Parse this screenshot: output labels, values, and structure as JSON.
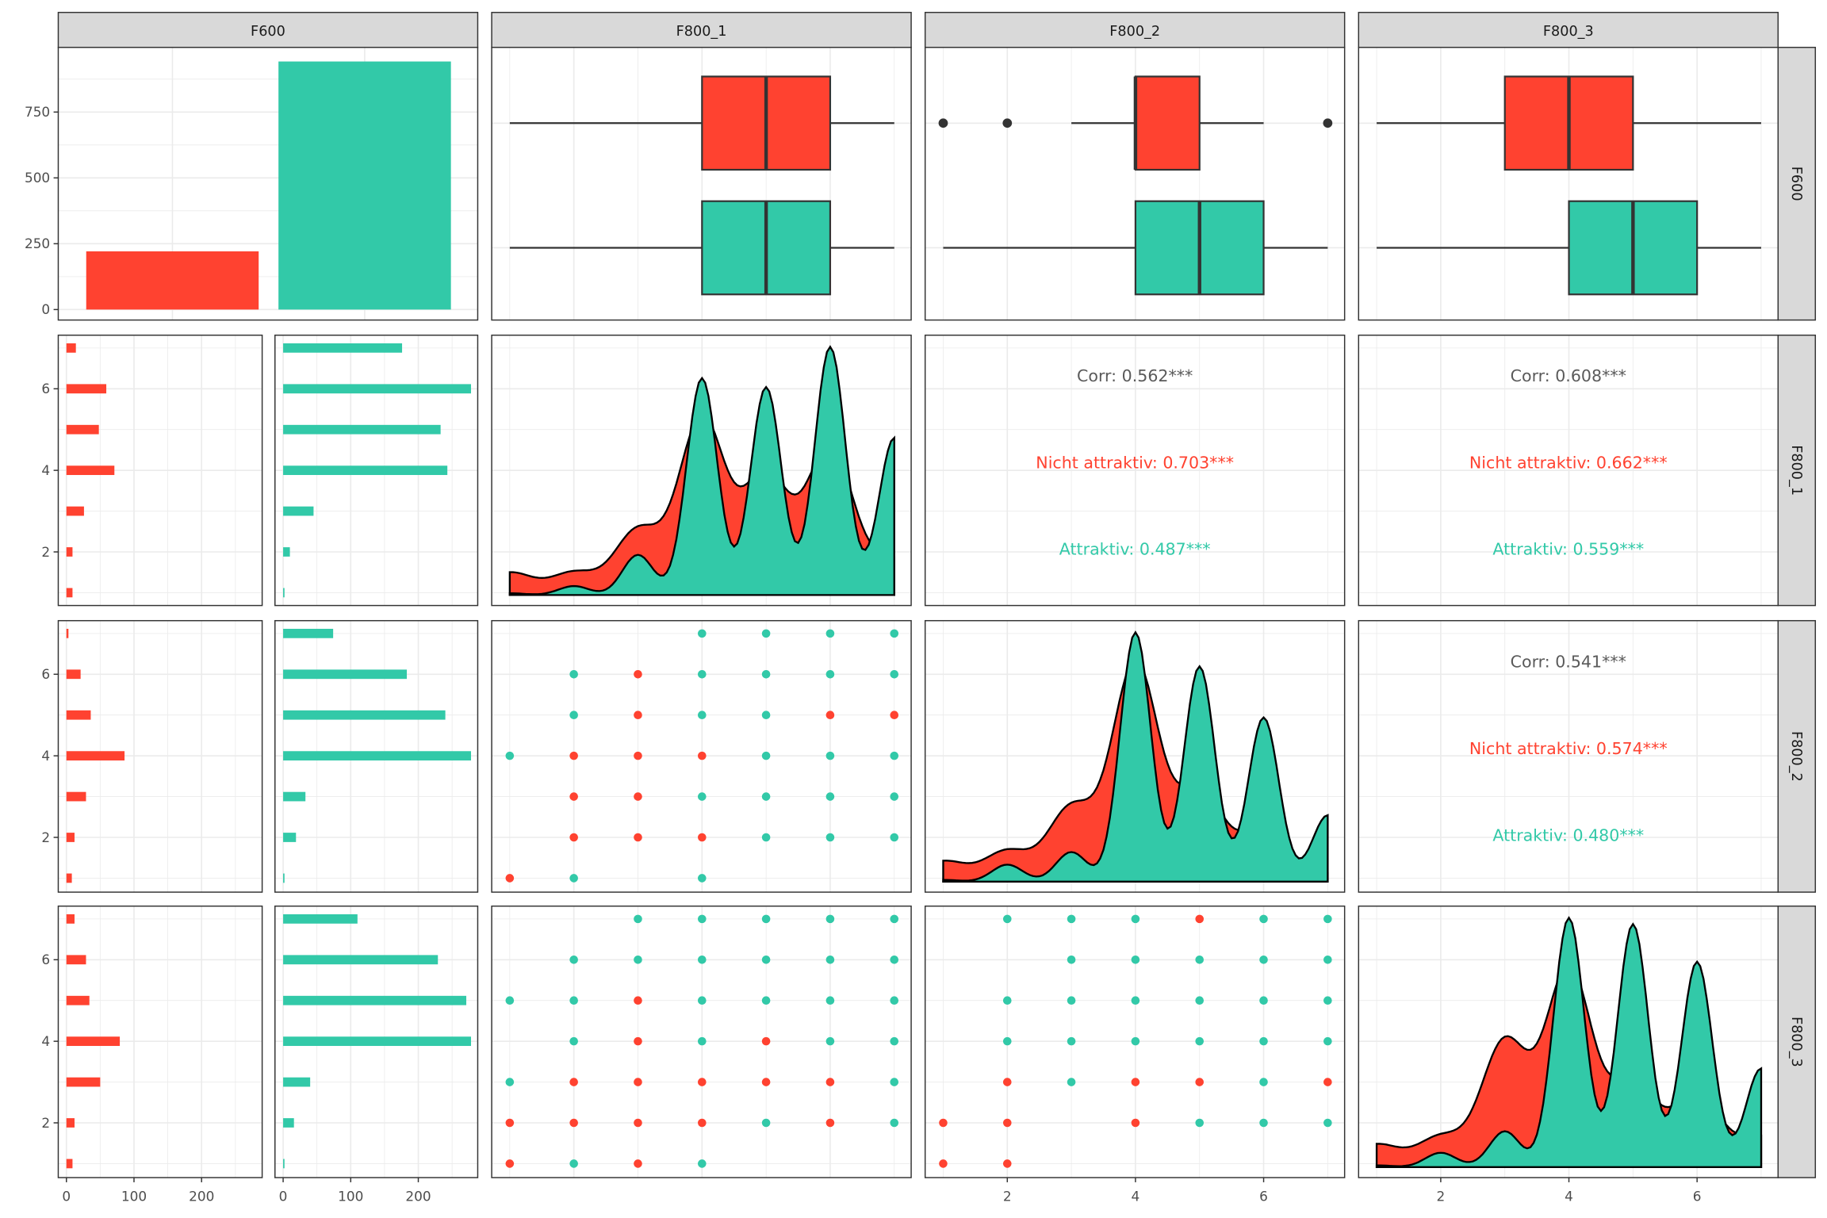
{
  "strips": {
    "top": [
      "F600",
      "F800_1",
      "F800_2",
      "F800_3"
    ],
    "right": [
      "F600",
      "F800_1",
      "F800_2",
      "F800_3"
    ]
  },
  "colors": {
    "Nicht attraktiv": "#FF4230",
    "Attraktiv": "#32C9A8",
    "corr_text": "#5a5a5a"
  },
  "chart_data": {
    "type": "pairs",
    "variables": [
      "F600",
      "F800_1",
      "F800_2",
      "F800_3"
    ],
    "groups": [
      "Nicht attraktiv",
      "Attraktiv"
    ],
    "F600_counts": {
      "Nicht attraktiv": 221,
      "Attraktiv": 942
    },
    "F600_axis": {
      "ticks": [
        "0",
        "250",
        "500",
        "750"
      ],
      "tick_values": [
        0,
        250,
        500,
        750
      ],
      "ylim": [
        0,
        1000
      ]
    },
    "value_axis": {
      "ticks": [
        "2",
        "4",
        "6"
      ],
      "tick_values": [
        2,
        4,
        6
      ],
      "range": [
        1,
        7
      ]
    },
    "count_axis": {
      "ticks": [
        "0",
        "100",
        "200"
      ],
      "tick_values": [
        0,
        100,
        200
      ],
      "range": [
        0,
        290
      ]
    },
    "counts": {
      "F800_1": {
        "Nicht attraktiv": [
          9,
          9,
          26,
          71,
          48,
          59,
          14
        ],
        "Attraktiv": [
          2,
          10,
          45,
          243,
          233,
          278,
          176
        ]
      },
      "F800_2": {
        "Nicht attraktiv": [
          8,
          12,
          29,
          86,
          36,
          21,
          3
        ],
        "Attraktiv": [
          2,
          19,
          33,
          278,
          240,
          183,
          74
        ]
      },
      "F800_3": {
        "Nicht attraktiv": [
          9,
          12,
          50,
          79,
          34,
          29,
          12
        ],
        "Attraktiv": [
          2,
          16,
          40,
          278,
          271,
          229,
          110
        ]
      }
    },
    "density_bandwidth": {
      "Nicht attraktiv": 0.36,
      "Attraktiv": 0.24
    },
    "boxplots": {
      "F800_1": {
        "Nicht attraktiv": {
          "min": 1,
          "q1": 4,
          "median": 5,
          "q3": 6,
          "max": 7,
          "outliers": []
        },
        "Attraktiv": {
          "min": 1,
          "q1": 4,
          "median": 5,
          "q3": 6,
          "max": 7,
          "outliers": []
        }
      },
      "F800_2": {
        "Nicht attraktiv": {
          "min": 3,
          "q1": 4,
          "median": 4,
          "q3": 5,
          "max": 6,
          "outliers": [
            1,
            2,
            7
          ]
        },
        "Attraktiv": {
          "min": 1,
          "q1": 4,
          "median": 5,
          "q3": 6,
          "max": 7,
          "outliers": []
        }
      },
      "F800_3": {
        "Nicht attraktiv": {
          "min": 1,
          "q1": 3,
          "median": 4,
          "q3": 5,
          "max": 7,
          "outliers": []
        },
        "Attraktiv": {
          "min": 1,
          "q1": 4,
          "median": 5,
          "q3": 6,
          "max": 7,
          "outliers": []
        }
      }
    },
    "correlations": [
      {
        "x": "F800_2",
        "y": "F800_1",
        "lines": [
          {
            "text": "Corr: 0.562***",
            "group": "all"
          },
          {
            "text": "Nicht attraktiv: 0.703***",
            "group": "Nicht attraktiv"
          },
          {
            "text": "Attraktiv: 0.487***",
            "group": "Attraktiv"
          }
        ]
      },
      {
        "x": "F800_3",
        "y": "F800_1",
        "lines": [
          {
            "text": "Corr: 0.608***",
            "group": "all"
          },
          {
            "text": "Nicht attraktiv: 0.662***",
            "group": "Nicht attraktiv"
          },
          {
            "text": "Attraktiv: 0.559***",
            "group": "Attraktiv"
          }
        ]
      },
      {
        "x": "F800_3",
        "y": "F800_2",
        "lines": [
          {
            "text": "Corr: 0.541***",
            "group": "all"
          },
          {
            "text": "Nicht attraktiv: 0.574***",
            "group": "Nicht attraktiv"
          },
          {
            "text": "Attraktiv: 0.480***",
            "group": "Attraktiv"
          }
        ]
      }
    ],
    "scatter_legend": "rows list y=7..1, characters x=1..7; r = Nicht attraktiv, g = Attraktiv, . = none",
    "scatter": [
      {
        "x": "F800_1",
        "y": "F800_2",
        "grid": [
          "...gggg",
          ".grgggg",
          ".grggrr",
          "grrrggg",
          ".rrgggg",
          ".rrrggg",
          "rg.g..."
        ]
      },
      {
        "x": "F800_1",
        "y": "F800_3",
        "grid": [
          "..ggggg",
          ".gggggg",
          "ggrgggg",
          ".grgrgg",
          "grrrrrg",
          "rrrrgrg",
          "rgrg..."
        ]
      },
      {
        "x": "F800_2",
        "y": "F800_3",
        "grid": [
          ".gggrgg",
          "..ggggg",
          ".gggggg",
          ".gggggg",
          ".rgrrgr",
          "rr.rggg",
          "rr....."
        ]
      }
    ]
  }
}
